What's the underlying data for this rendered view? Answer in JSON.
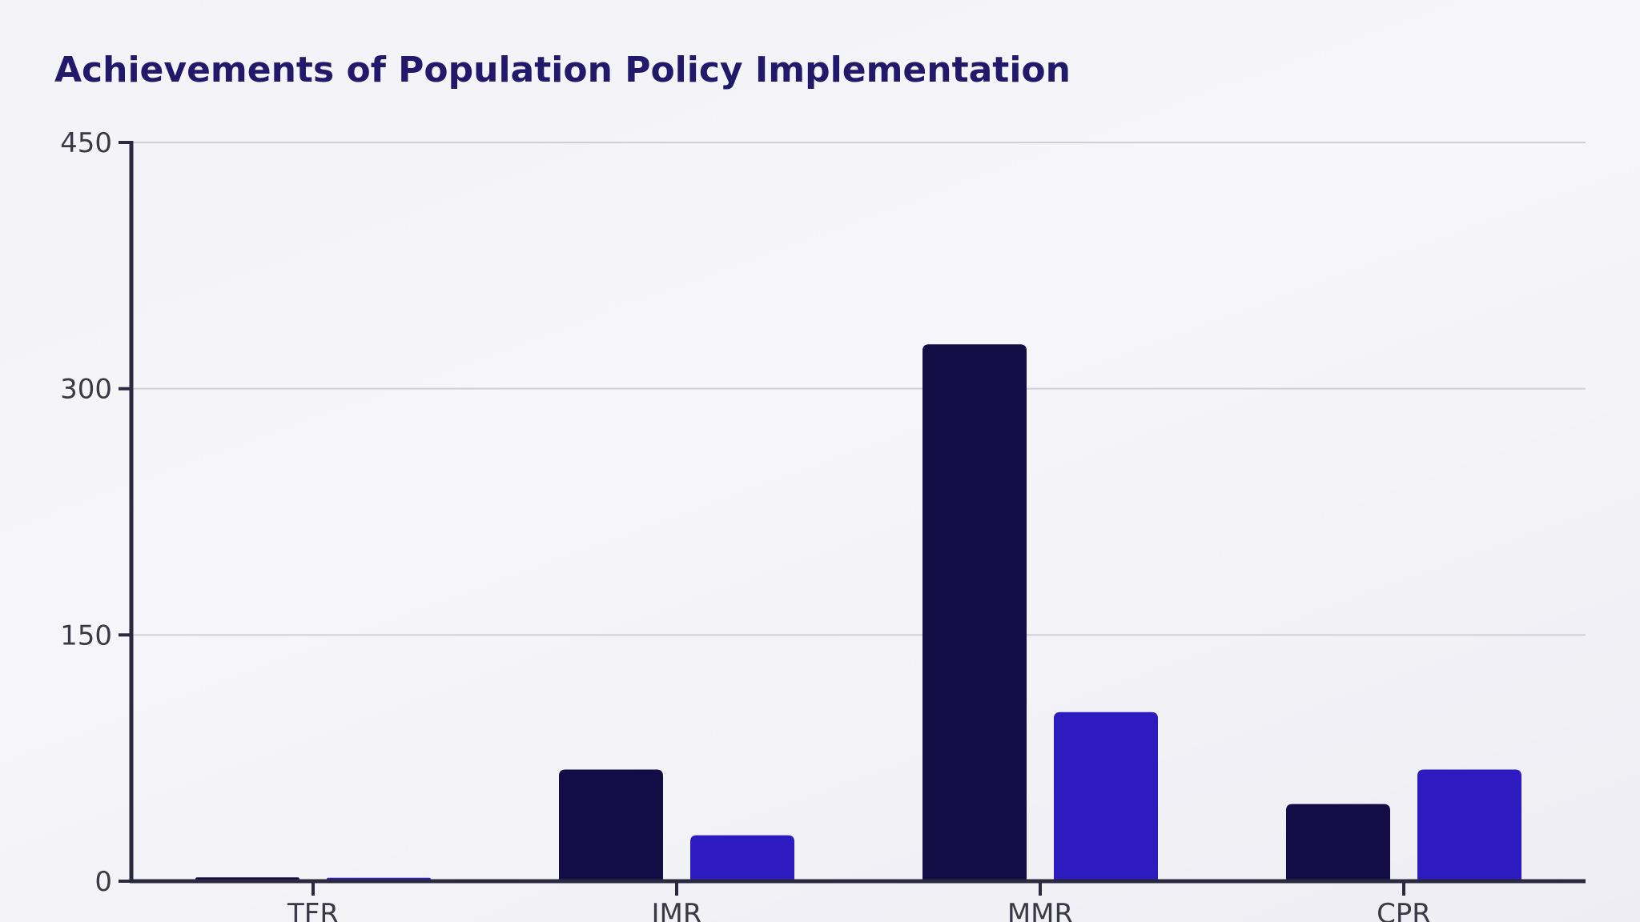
{
  "chart_data": {
    "type": "bar",
    "title": "Achievements of Population Policy Implementation",
    "xlabel": "",
    "ylabel": "",
    "categories": [
      "TFR",
      "IMR",
      "MMR",
      "CPR"
    ],
    "series": [
      {
        "values": [
          2.3,
          68,
          327,
          47
        ],
        "color": "#140c45"
      },
      {
        "values": [
          2.1,
          28,
          103,
          68
        ],
        "color": "#2d1bbf"
      }
    ],
    "ylim": [
      0,
      450
    ],
    "yticks": [
      0,
      150,
      300,
      450
    ],
    "grid": true,
    "legend": "none"
  }
}
